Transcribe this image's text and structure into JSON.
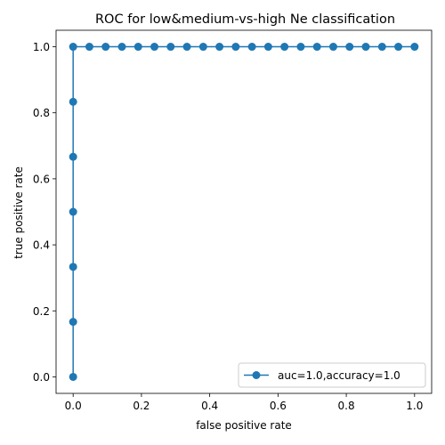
{
  "chart_data": {
    "type": "line",
    "title": "ROC for low&medium-vs-high Ne classification",
    "xlabel": "false positive rate",
    "ylabel": "true positive rate",
    "xlim": [
      -0.05,
      1.05
    ],
    "ylim": [
      -0.05,
      1.05
    ],
    "xticks": [
      0.0,
      0.2,
      0.4,
      0.6,
      0.8,
      1.0
    ],
    "xtick_labels": [
      "0.0",
      "0.2",
      "0.4",
      "0.6",
      "0.8",
      "1.0"
    ],
    "yticks": [
      0.0,
      0.2,
      0.4,
      0.6,
      0.8,
      1.0
    ],
    "ytick_labels": [
      "0.0",
      "0.2",
      "0.4",
      "0.6",
      "0.8",
      "1.0"
    ],
    "grid": false,
    "legend_position": "lower-right",
    "series": [
      {
        "name": "auc=1.0,accuracy=1.0",
        "color": "#1f77b4",
        "marker": "circle",
        "points": [
          [
            0.0,
            0.0
          ],
          [
            0.0,
            0.1667
          ],
          [
            0.0,
            0.3333
          ],
          [
            0.0,
            0.5
          ],
          [
            0.0,
            0.6667
          ],
          [
            0.0,
            0.8333
          ],
          [
            0.0,
            1.0
          ],
          [
            0.0476,
            1.0
          ],
          [
            0.0952,
            1.0
          ],
          [
            0.1429,
            1.0
          ],
          [
            0.1905,
            1.0
          ],
          [
            0.2381,
            1.0
          ],
          [
            0.2857,
            1.0
          ],
          [
            0.3333,
            1.0
          ],
          [
            0.381,
            1.0
          ],
          [
            0.4286,
            1.0
          ],
          [
            0.4762,
            1.0
          ],
          [
            0.5238,
            1.0
          ],
          [
            0.5714,
            1.0
          ],
          [
            0.619,
            1.0
          ],
          [
            0.6667,
            1.0
          ],
          [
            0.7143,
            1.0
          ],
          [
            0.7619,
            1.0
          ],
          [
            0.8095,
            1.0
          ],
          [
            0.8571,
            1.0
          ],
          [
            0.9048,
            1.0
          ],
          [
            0.9524,
            1.0
          ],
          [
            1.0,
            1.0
          ]
        ]
      }
    ]
  }
}
